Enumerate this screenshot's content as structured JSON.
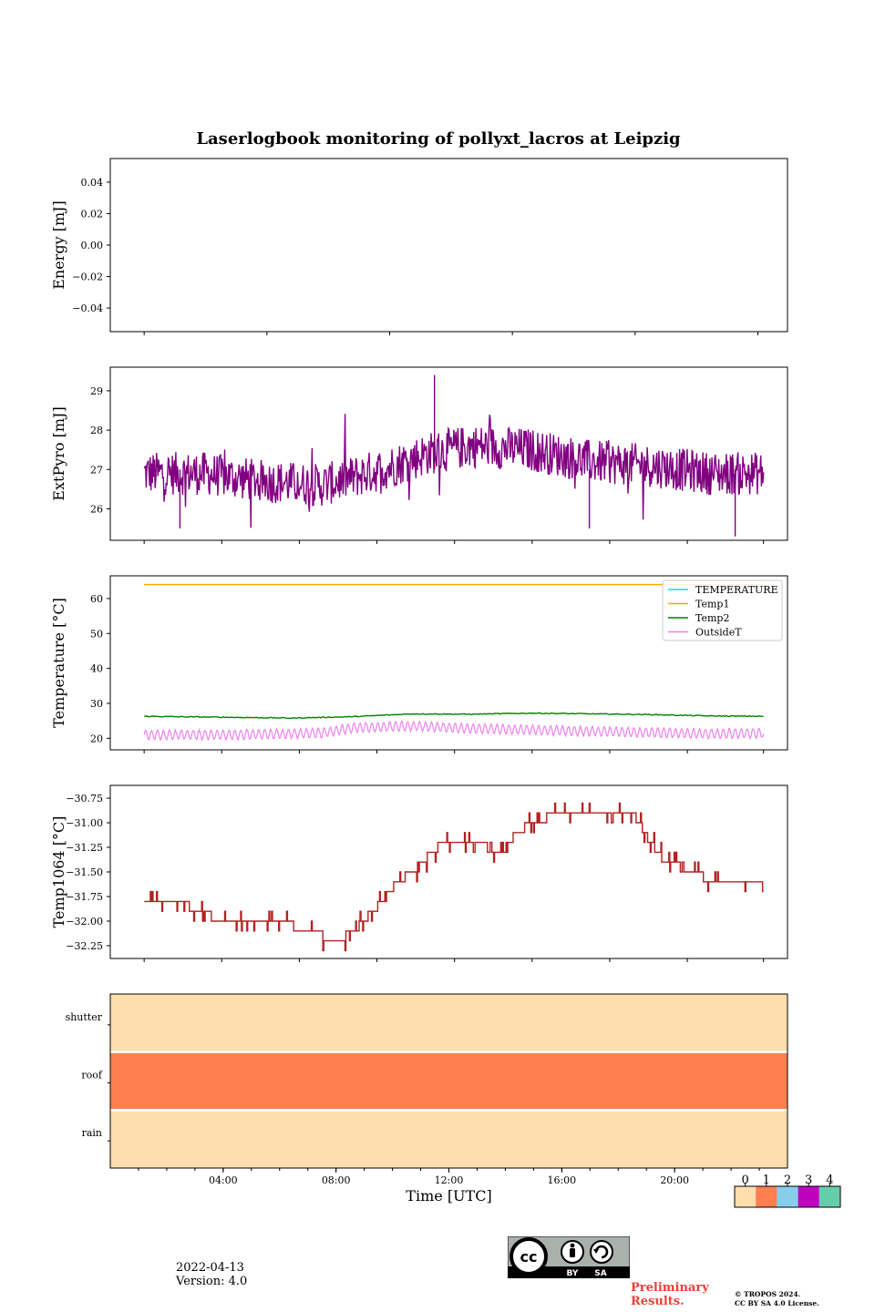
{
  "title": "Laserlogbook monitoring of pollyxt_lacros at Leipzig",
  "footer": {
    "date": "2022-04-13",
    "version": "Version: 4.0",
    "preliminary": [
      "Preliminary",
      "Results."
    ],
    "copyright": [
      "© TROPOS 2024.",
      "CC BY SA 4.0 License."
    ],
    "license_badge": {
      "text": "CC BY SA",
      "icons": [
        "cc-icon",
        "by-person-icon",
        "sa-share-alike-icon"
      ],
      "labels": [
        "BY",
        "SA"
      ]
    }
  },
  "colors": {
    "extpyro": "#800080",
    "temperature": "#00e5ee",
    "temp1": "#ffa500",
    "temp2": "#008000",
    "outsideT": "#ee82ee",
    "temp1064": "#b22222",
    "status_0": "#ffdead",
    "status_1": "#ff7f50",
    "status_2": "#87ceeb",
    "status_3": "#c000c0",
    "status_4": "#66cdaa"
  },
  "chart_data": [
    {
      "type": "line",
      "panel": "energy",
      "ylabel": "Energy [mJ]",
      "ylim": [
        -0.055,
        0.055
      ],
      "yticks": [
        0.04,
        0.02,
        0.0,
        -0.02,
        -0.04
      ],
      "ytick_labels": [
        "0.04",
        "0.02",
        "0.00",
        "−0.02",
        "−0.04"
      ],
      "series": []
    },
    {
      "type": "line",
      "panel": "extpyro",
      "ylabel": "ExtPyro [mJ]",
      "ylim": [
        25.2,
        29.6
      ],
      "yticks": [
        26,
        27,
        28,
        29
      ],
      "ytick_labels": [
        "26",
        "27",
        "28",
        "29"
      ],
      "series": [
        {
          "color": "#800080",
          "profile": {
            "x_hours": [
              1.0,
              3.0,
              5.0,
              7.0,
              9.0,
              10.5,
              12.0,
              14.0,
              16.0,
              18.0,
              20.0,
              21.8
            ],
            "y": [
              26.9,
              26.9,
              26.7,
              26.6,
              27.0,
              27.4,
              27.6,
              27.5,
              27.2,
              27.1,
              26.9,
              26.9
            ]
          },
          "noise_amplitude": 0.55,
          "extremes": [
            {
              "x_hours": 10.75,
              "y": 29.4
            },
            {
              "x_hours": 15.95,
              "y": 25.5
            },
            {
              "x_hours": 20.85,
              "y": 25.3
            },
            {
              "x_hours": 2.2,
              "y": 25.5
            }
          ]
        }
      ]
    },
    {
      "type": "line",
      "panel": "temperature",
      "ylabel": "Temperature [°C]",
      "ylim": [
        16.7,
        66.5
      ],
      "yticks": [
        20,
        30,
        40,
        50,
        60
      ],
      "ytick_labels": [
        "20",
        "30",
        "40",
        "50",
        "60"
      ],
      "legend_location": "upper right",
      "series": [
        {
          "name": "TEMPERATURE",
          "color": "#00e5ee",
          "x_hours": [],
          "y": []
        },
        {
          "name": "Temp1",
          "color": "#ffa500",
          "x_hours": [
            1.0,
            21.8
          ],
          "y": [
            64.0,
            64.0
          ]
        },
        {
          "name": "Temp2",
          "color": "#008000",
          "x_hours": [
            1.0,
            3.0,
            6.0,
            8.0,
            10.0,
            12.0,
            14.0,
            16.0,
            18.0,
            20.0,
            21.8
          ],
          "y": [
            26.3,
            26.1,
            25.8,
            26.2,
            27.0,
            26.9,
            27.2,
            27.0,
            26.8,
            26.4,
            26.3
          ]
        },
        {
          "name": "OutsideT",
          "color": "#ee82ee",
          "baseline": {
            "x_hours": [
              1.0,
              4.0,
              7.0,
              8.0,
              10.0,
              12.0,
              16.0,
              20.0,
              21.8
            ],
            "y": [
              21.0,
              21.0,
              21.5,
              23.0,
              23.5,
              22.8,
              22.0,
              21.3,
              21.5
            ]
          },
          "oscillation_amplitude": 1.3,
          "oscillation_period_hours": 0.2
        }
      ]
    },
    {
      "type": "line",
      "panel": "temp1064",
      "ylabel": "Temp1064 [°C]",
      "ylim": [
        -32.38,
        -30.62
      ],
      "yticks": [
        -30.75,
        -31.0,
        -31.25,
        -31.5,
        -31.75,
        -32.0,
        -32.25
      ],
      "ytick_labels": [
        "−30.75",
        "−31.00",
        "−31.25",
        "−31.50",
        "−31.75",
        "−32.00",
        "−32.25"
      ],
      "series": [
        {
          "color": "#b22222",
          "step": 0.1,
          "x_hours": [
            1.0,
            1.5,
            2.5,
            3.0,
            3.5,
            5.0,
            6.0,
            6.5,
            7.5,
            8.0,
            8.5,
            9.0,
            9.5,
            10.0,
            10.5,
            11.0,
            12.0,
            13.0,
            13.5,
            14.0,
            15.0,
            16.0,
            17.0,
            17.5,
            18.0,
            18.5,
            19.5,
            20.0,
            21.0,
            21.8
          ],
          "y": [
            -31.8,
            -31.8,
            -31.85,
            -31.9,
            -32.0,
            -32.0,
            -32.05,
            -32.1,
            -32.2,
            -32.1,
            -31.95,
            -31.8,
            -31.6,
            -31.5,
            -31.35,
            -31.2,
            -31.2,
            -31.3,
            -31.1,
            -31.0,
            -30.9,
            -30.9,
            -30.9,
            -30.95,
            -31.2,
            -31.4,
            -31.5,
            -31.6,
            -31.65,
            -31.6
          ]
        }
      ]
    },
    {
      "type": "heatmap",
      "panel": "status",
      "rows": [
        "shutter",
        "roof",
        "rain"
      ],
      "row_values": [
        0,
        1,
        0
      ],
      "colorbar_ticks": [
        "0",
        "1",
        "2",
        "3",
        "4"
      ],
      "xlabel": "Time [UTC]",
      "xtick_labels": [
        "04:00",
        "08:00",
        "12:00",
        "16:00",
        "20:00"
      ],
      "xticks_hours": [
        4,
        8,
        12,
        16,
        20
      ],
      "xlim_hours": [
        0,
        24
      ]
    }
  ]
}
